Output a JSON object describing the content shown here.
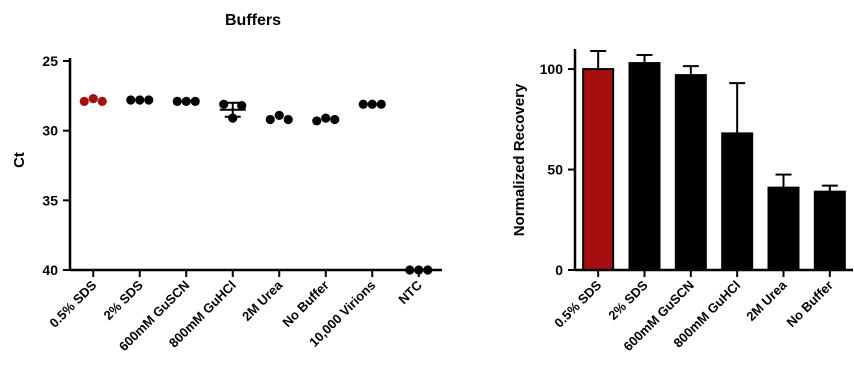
{
  "chart_data": [
    {
      "type": "scatter",
      "title": "Buffers",
      "xlabel": "",
      "ylabel": "Ct",
      "ylim": [
        40,
        25
      ],
      "y_inverted": true,
      "y_ticks": [
        25,
        30,
        35,
        40
      ],
      "grid": false,
      "highlight_color": "#a50f0f",
      "point_color": "#000000",
      "categories": [
        "0.5% SDS",
        "2% SDS",
        "600mM GuSCN",
        "800mM GuHCl",
        "2M Urea",
        "No Buffer",
        "10,000 Virions",
        "NTC"
      ],
      "points": [
        [
          27.9,
          27.7,
          27.9
        ],
        [
          27.8,
          27.8,
          27.8
        ],
        [
          27.9,
          27.9,
          27.9
        ],
        [
          28.1,
          29.1,
          28.2
        ],
        [
          29.2,
          28.9,
          29.2
        ],
        [
          29.3,
          29.1,
          29.2
        ],
        [
          28.1,
          28.1,
          28.1
        ],
        [
          40.0,
          40.0,
          40.0
        ]
      ],
      "error_bars": [
        null,
        null,
        null,
        {
          "mean": 28.5,
          "sd": 0.5
        },
        null,
        null,
        null,
        null
      ],
      "highlight_index": 0
    },
    {
      "type": "bar",
      "title": "",
      "xlabel": "",
      "ylabel": "Normalized Recovery",
      "ylim": [
        0,
        110
      ],
      "y_ticks": [
        0,
        50,
        100
      ],
      "grid": false,
      "highlight_color": "#a50f0f",
      "bar_color": "#000000",
      "categories": [
        "0.5% SDS",
        "2% SDS",
        "600mM GuSCN",
        "800mM GuHCl",
        "2M Urea",
        "No Buffer"
      ],
      "values": [
        100,
        103,
        97,
        68,
        41,
        39
      ],
      "errors": [
        9,
        4,
        4.5,
        25,
        6.5,
        3
      ],
      "highlight_index": 0
    }
  ]
}
